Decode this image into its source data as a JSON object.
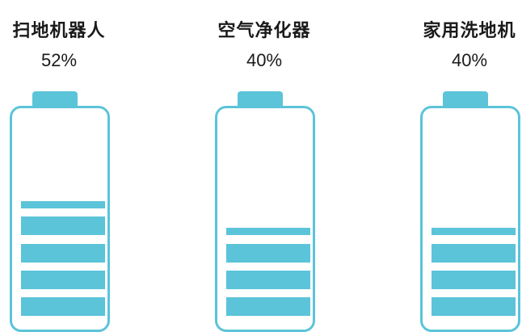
{
  "devices": [
    {
      "name": "扫地机器人",
      "percent": "52%",
      "level": 0.52,
      "bars": 5
    },
    {
      "name": "空气净化器",
      "percent": "40%",
      "level": 0.4,
      "bars": 4
    },
    {
      "name": "家用洗地机",
      "percent": "40%",
      "level": 0.4,
      "bars": 4
    }
  ],
  "colors": {
    "battery": "#5bc4d9",
    "text": "#1a1a1a",
    "background": "#ffffff"
  }
}
